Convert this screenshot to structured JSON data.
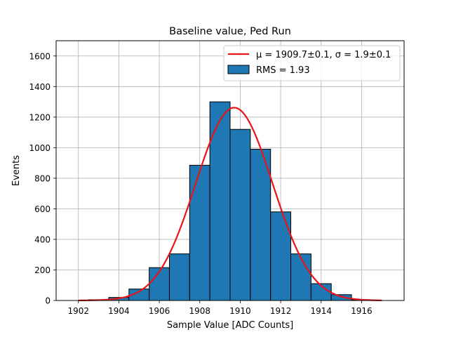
{
  "chart_data": {
    "type": "bar",
    "title": "Baseline value, Ped Run",
    "xlabel": "Sample Value [ADC Counts]",
    "ylabel": "Events",
    "xlim": [
      1900.9,
      1918.1
    ],
    "ylim": [
      0,
      1700
    ],
    "xticks": [
      1902,
      1904,
      1906,
      1908,
      1910,
      1912,
      1914,
      1916
    ],
    "yticks": [
      0,
      200,
      400,
      600,
      800,
      1000,
      1200,
      1400,
      1600
    ],
    "grid": true,
    "legend_position": "top-right",
    "histogram": {
      "name": "RMS = 1.93",
      "color": "#1f77b4",
      "edgecolor": "#000000",
      "bin_width": 1.0,
      "bin_starts": [
        1901.5,
        1902.5,
        1903.5,
        1904.5,
        1905.5,
        1906.5,
        1907.5,
        1908.5,
        1909.5,
        1910.5,
        1911.5,
        1912.5,
        1913.5,
        1914.5,
        1915.5,
        1916.5
      ],
      "values": [
        0,
        5,
        20,
        75,
        215,
        305,
        885,
        1300,
        1120,
        990,
        580,
        305,
        110,
        38,
        5,
        0
      ]
    },
    "fit": {
      "name": "μ = 1909.7±0.1, σ = 1.9±0.1",
      "color": "#e8141a",
      "mu": 1909.7,
      "sigma": 1.9,
      "amplitude": 1262,
      "x_range": [
        1902,
        1917
      ]
    }
  }
}
